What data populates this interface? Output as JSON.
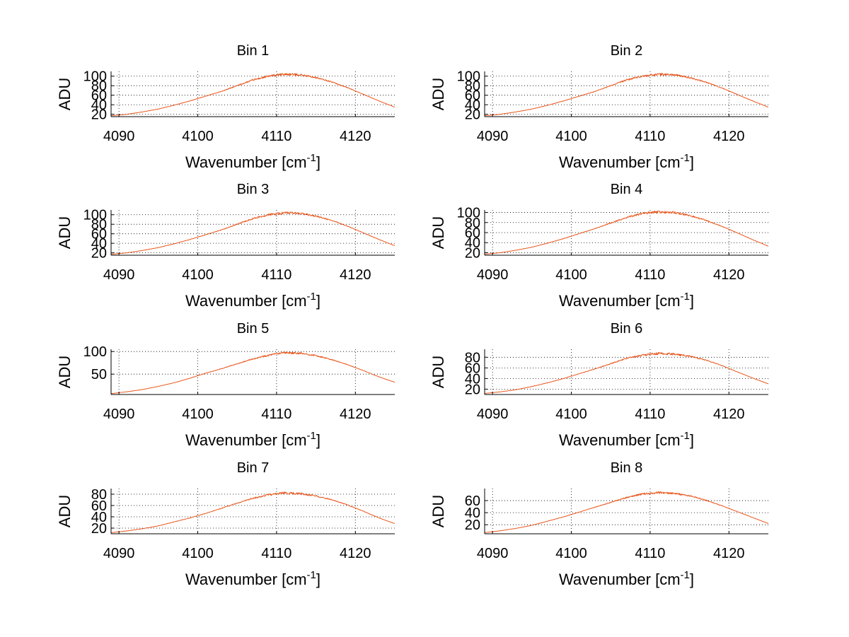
{
  "figure": {
    "background": "#ffffff",
    "line_color": "#e8571d"
  },
  "chart_data": [
    {
      "type": "line",
      "title": "Bin 1",
      "xlabel": "Wavenumber [cm",
      "xlabel_sup": "-1",
      "xlabel_end": "]",
      "ylabel": "ADU",
      "xlim": [
        4089,
        4125
      ],
      "ylim": [
        15,
        110
      ],
      "xticks": [
        4090,
        4100,
        4110,
        4120
      ],
      "yticks": [
        20,
        40,
        60,
        80,
        100
      ],
      "grid": true,
      "x": [
        4089,
        4091,
        4093,
        4095,
        4097,
        4099,
        4101,
        4103,
        4105,
        4107,
        4109,
        4111,
        4113,
        4115,
        4117,
        4119,
        4121,
        4123,
        4125
      ],
      "y": [
        17,
        20,
        25,
        31,
        39,
        48,
        58,
        68,
        80,
        92,
        100,
        104,
        103,
        97,
        88,
        76,
        62,
        48,
        35
      ]
    },
    {
      "type": "line",
      "title": "Bin 2",
      "xlabel": "Wavenumber [cm",
      "xlabel_sup": "-1",
      "xlabel_end": "]",
      "ylabel": "ADU",
      "xlim": [
        4089,
        4125
      ],
      "ylim": [
        15,
        110
      ],
      "xticks": [
        4090,
        4100,
        4110,
        4120
      ],
      "yticks": [
        20,
        40,
        60,
        80,
        100
      ],
      "grid": true,
      "x": [
        4089,
        4091,
        4093,
        4095,
        4097,
        4099,
        4101,
        4103,
        4105,
        4107,
        4109,
        4111,
        4113,
        4115,
        4117,
        4119,
        4121,
        4123,
        4125
      ],
      "y": [
        17,
        20,
        25,
        31,
        39,
        48,
        58,
        68,
        80,
        92,
        100,
        104,
        103,
        97,
        88,
        76,
        62,
        48,
        35
      ]
    },
    {
      "type": "line",
      "title": "Bin 3",
      "xlabel": "Wavenumber [cm",
      "xlabel_sup": "-1",
      "xlabel_end": "]",
      "ylabel": "ADU",
      "xlim": [
        4089,
        4125
      ],
      "ylim": [
        15,
        110
      ],
      "xticks": [
        4090,
        4100,
        4110,
        4120
      ],
      "yticks": [
        20,
        40,
        60,
        80,
        100
      ],
      "grid": true,
      "x": [
        4089,
        4091,
        4093,
        4095,
        4097,
        4099,
        4101,
        4103,
        4105,
        4107,
        4109,
        4111,
        4113,
        4115,
        4117,
        4119,
        4121,
        4123,
        4125
      ],
      "y": [
        17,
        20,
        25,
        31,
        39,
        48,
        58,
        68,
        80,
        92,
        100,
        104,
        103,
        97,
        88,
        76,
        62,
        48,
        35
      ]
    },
    {
      "type": "line",
      "title": "Bin 4",
      "xlabel": "Wavenumber [cm",
      "xlabel_sup": "-1",
      "xlabel_end": "]",
      "ylabel": "ADU",
      "xlim": [
        4089,
        4125
      ],
      "ylim": [
        15,
        105
      ],
      "xticks": [
        4090,
        4100,
        4110,
        4120
      ],
      "yticks": [
        20,
        40,
        60,
        80,
        100
      ],
      "grid": true,
      "x": [
        4089,
        4091,
        4093,
        4095,
        4097,
        4099,
        4101,
        4103,
        4105,
        4107,
        4109,
        4111,
        4113,
        4115,
        4117,
        4119,
        4121,
        4123,
        4125
      ],
      "y": [
        17,
        20,
        25,
        31,
        39,
        48,
        58,
        68,
        79,
        90,
        98,
        101,
        100,
        94,
        85,
        73,
        60,
        46,
        33
      ]
    },
    {
      "type": "line",
      "title": "Bin 5",
      "xlabel": "Wavenumber [cm",
      "xlabel_sup": "-1",
      "xlabel_end": "]",
      "ylabel": "ADU",
      "xlim": [
        4089,
        4125
      ],
      "ylim": [
        5,
        105
      ],
      "xticks": [
        4090,
        4100,
        4110,
        4120
      ],
      "yticks": [
        50,
        100
      ],
      "grid": true,
      "x": [
        4089,
        4091,
        4093,
        4095,
        4097,
        4099,
        4101,
        4103,
        4105,
        4107,
        4109,
        4111,
        4113,
        4115,
        4117,
        4119,
        4121,
        4123,
        4125
      ],
      "y": [
        7,
        11,
        16,
        23,
        31,
        41,
        52,
        62,
        73,
        84,
        92,
        97,
        96,
        91,
        82,
        71,
        58,
        44,
        32
      ]
    },
    {
      "type": "line",
      "title": "Bin 6",
      "xlabel": "Wavenumber [cm",
      "xlabel_sup": "-1",
      "xlabel_end": "]",
      "ylabel": "ADU",
      "xlim": [
        4089,
        4125
      ],
      "ylim": [
        10,
        95
      ],
      "xticks": [
        4090,
        4100,
        4110,
        4120
      ],
      "yticks": [
        20,
        40,
        60,
        80
      ],
      "grid": true,
      "x": [
        4089,
        4091,
        4093,
        4095,
        4097,
        4099,
        4101,
        4103,
        4105,
        4107,
        4109,
        4111,
        4113,
        4115,
        4117,
        4119,
        4121,
        4123,
        4125
      ],
      "y": [
        12,
        15,
        19,
        25,
        32,
        40,
        49,
        58,
        68,
        78,
        84,
        87,
        86,
        82,
        75,
        65,
        53,
        41,
        30
      ]
    },
    {
      "type": "line",
      "title": "Bin 7",
      "xlabel": "Wavenumber [cm",
      "xlabel_sup": "-1",
      "xlabel_end": "]",
      "ylabel": "ADU",
      "xlim": [
        4089,
        4125
      ],
      "ylim": [
        10,
        90
      ],
      "xticks": [
        4090,
        4100,
        4110,
        4120
      ],
      "yticks": [
        20,
        40,
        60,
        80
      ],
      "grid": true,
      "x": [
        4089,
        4091,
        4093,
        4095,
        4097,
        4099,
        4101,
        4103,
        4105,
        4107,
        4109,
        4111,
        4113,
        4115,
        4117,
        4119,
        4121,
        4123,
        4125
      ],
      "y": [
        12,
        15,
        19,
        24,
        31,
        38,
        46,
        55,
        64,
        73,
        79,
        82,
        81,
        77,
        70,
        61,
        50,
        38,
        28
      ]
    },
    {
      "type": "line",
      "title": "Bin 8",
      "xlabel": "Wavenumber [cm",
      "xlabel_sup": "-1",
      "xlabel_end": "]",
      "ylabel": "ADU",
      "xlim": [
        4089,
        4125
      ],
      "ylim": [
        5,
        80
      ],
      "xticks": [
        4090,
        4100,
        4110,
        4120
      ],
      "yticks": [
        20,
        40,
        60
      ],
      "grid": true,
      "x": [
        4089,
        4091,
        4093,
        4095,
        4097,
        4099,
        4101,
        4103,
        4105,
        4107,
        4109,
        4111,
        4113,
        4115,
        4117,
        4119,
        4121,
        4123,
        4125
      ],
      "y": [
        7,
        10,
        14,
        19,
        26,
        33,
        41,
        49,
        57,
        65,
        71,
        73,
        72,
        68,
        61,
        52,
        42,
        32,
        22
      ]
    }
  ]
}
